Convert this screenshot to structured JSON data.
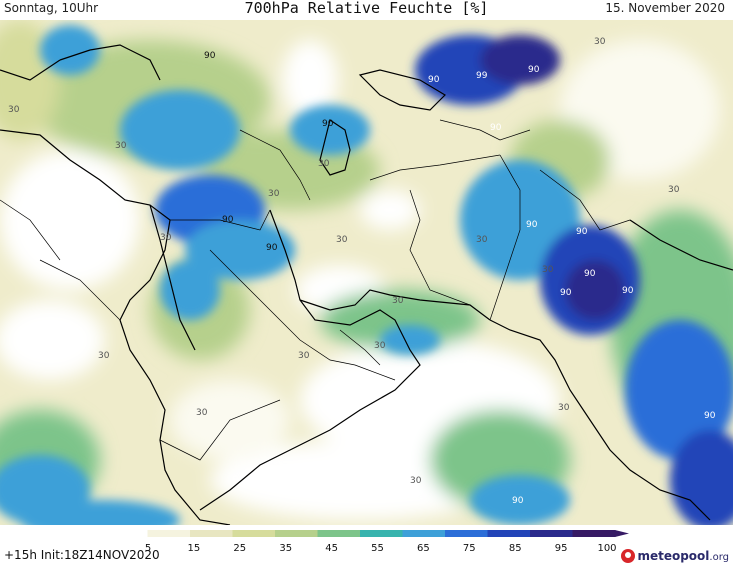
{
  "header": {
    "valid_time": "Sonntag, 10Uhr",
    "title": "700hPa Relative Feuchte [%]",
    "date": "15. November 2020"
  },
  "footer": {
    "run_info": "+15h Init:18Z14NOV2020",
    "brand": "meteopool",
    "brand_suffix": ".org"
  },
  "legend": {
    "ticks": [
      "5",
      "15",
      "25",
      "35",
      "45",
      "55",
      "65",
      "75",
      "85",
      "95",
      "100"
    ],
    "colors": [
      "#ffffff",
      "#f5f3df",
      "#e8e6c1",
      "#d6dc9c",
      "#b6d08c",
      "#7dc48a",
      "#38b4ae",
      "#3ea0d8",
      "#2c6ed8",
      "#2244b8",
      "#2a2a8c",
      "#361a64"
    ]
  },
  "contour_labels": [
    "90",
    "90",
    "99",
    "90",
    "90",
    "90",
    "30",
    "30",
    "90",
    "90",
    "30",
    "90",
    "90",
    "30",
    "90",
    "30",
    "30",
    "30",
    "30",
    "30",
    "90",
    "90",
    "90",
    "30",
    "30",
    "30",
    "30",
    "30",
    "30",
    "30",
    "90",
    "30"
  ]
}
